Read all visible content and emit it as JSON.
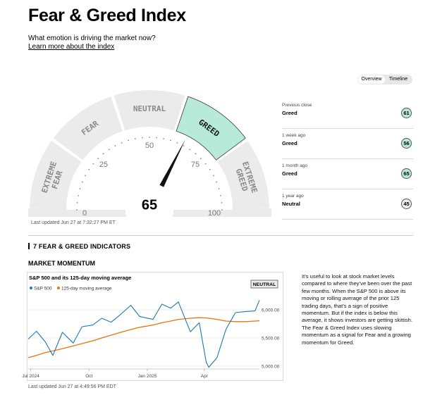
{
  "header": {
    "title": "Fear & Greed Index",
    "subtitle": "What emotion is driving the market now?",
    "learn_link": "Learn more about the index"
  },
  "gauge": {
    "value": "65",
    "segments": [
      "EXTREME FEAR",
      "FEAR",
      "NEUTRAL",
      "GREED",
      "EXTREME GREED"
    ],
    "active_segment": "GREED",
    "ticks": [
      "0",
      "25",
      "50",
      "75",
      "100"
    ],
    "active_color": "#b7ead9",
    "inactive_color": "#ebebeb",
    "last_updated": "Last updated Jun 27 at 7:32:27 PM ET"
  },
  "toggle": {
    "overview": "Overview",
    "timeline": "Timeline"
  },
  "history": [
    {
      "label": "Previous close",
      "value": "Greed",
      "score": "61",
      "kind": "greed"
    },
    {
      "label": "1 week ago",
      "value": "Greed",
      "score": "56",
      "kind": "greed"
    },
    {
      "label": "1 month ago",
      "value": "Greed",
      "score": "65",
      "kind": "greed"
    },
    {
      "label": "1 year ago",
      "value": "Neutral",
      "score": "45",
      "kind": "neutral"
    }
  ],
  "section": {
    "title": "7 FEAR & GREED INDICATORS"
  },
  "indicator": {
    "name": "MARKET MOMENTUM",
    "chart_title": "S&P 500 and its 125-day moving average",
    "badge": "NEUTRAL",
    "last_updated": "Last updated Jun 27 at 4:49:56 PM EDT",
    "description": "It’s useful to look at stock market levels compared to where they’ve been over the past few months. When the S&P 500 is above its moving or rolling average of the prior 125 trading days, that’s a sign of positive momentum. But if the index is below this average, it shows investors are getting skittish. The Fear & Greed Index uses slowing momentum as a signal for Fear and a growing momentum for Greed."
  },
  "chart_data": {
    "type": "line",
    "x": [
      "2024-06-27",
      "2024-07-10",
      "2024-07-24",
      "2024-08-05",
      "2024-08-20",
      "2024-09-06",
      "2024-09-20",
      "2024-10-07",
      "2024-10-21",
      "2024-11-05",
      "2024-11-20",
      "2024-12-06",
      "2024-12-20",
      "2025-01-10",
      "2025-01-24",
      "2025-02-07",
      "2025-02-19",
      "2025-03-10",
      "2025-03-24",
      "2025-04-04",
      "2025-04-08",
      "2025-04-21",
      "2025-05-05",
      "2025-05-20",
      "2025-06-05",
      "2025-06-20",
      "2025-06-27"
    ],
    "series": [
      {
        "name": "S&P 500",
        "color": "#1f77b4",
        "values": [
          5480,
          5620,
          5430,
          5190,
          5600,
          5410,
          5700,
          5730,
          5850,
          5780,
          5920,
          6080,
          5880,
          5830,
          6100,
          6030,
          6140,
          5610,
          5770,
          5070,
          4980,
          5150,
          5650,
          5950,
          5970,
          5980,
          6170
        ]
      },
      {
        "name": "125-day moving average",
        "color": "#e8740c",
        "values": [
          5150,
          5190,
          5240,
          5270,
          5310,
          5360,
          5400,
          5450,
          5500,
          5550,
          5600,
          5650,
          5690,
          5730,
          5770,
          5800,
          5830,
          5850,
          5860,
          5855,
          5850,
          5830,
          5800,
          5790,
          5790,
          5800,
          5805
        ]
      }
    ],
    "x_ticks": [
      "Jul 2024",
      "Oct",
      "Jan 2025",
      "Apr"
    ],
    "y_ticks": [
      "5,000.00",
      "5,500.00",
      "6,000.00"
    ],
    "ylim": [
      4950,
      6250
    ],
    "legend": "top-left"
  }
}
